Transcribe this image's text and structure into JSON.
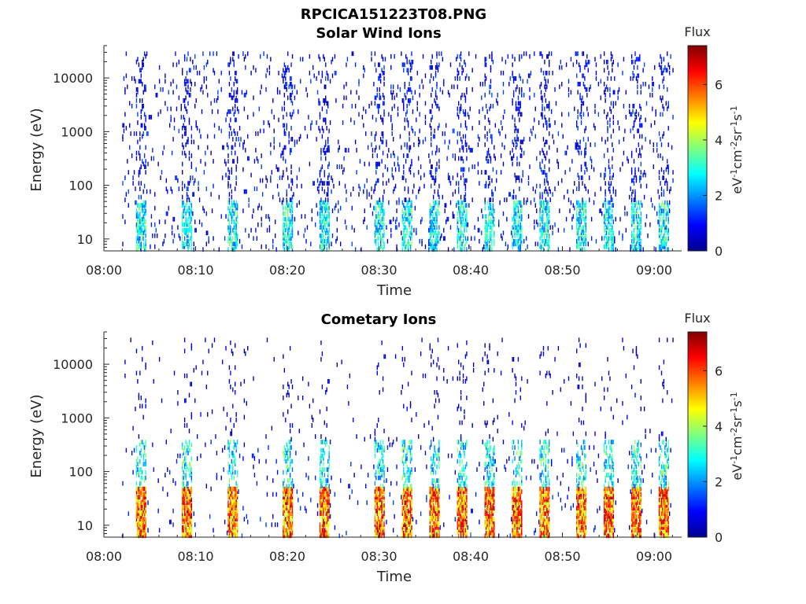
{
  "figure": {
    "title": "RPCICA151223T08.PNG"
  },
  "chart_data": [
    {
      "type": "heatmap",
      "title": "Solar Wind Ions",
      "xlabel": "Time",
      "ylabel": "Energy (eV)",
      "yscale": "log",
      "xlim": [
        "08:00",
        "09:03"
      ],
      "ylim": [
        6,
        40000
      ],
      "xticks": [
        "08:00",
        "08:10",
        "08:20",
        "08:30",
        "08:40",
        "08:50",
        "09:00"
      ],
      "yticks": [
        "10",
        "100",
        "1000",
        "10000"
      ],
      "colorbar": {
        "label": "Flux",
        "unit_label": "eV-1cm-2sr-1s-1",
        "range": [
          0,
          7.4
        ],
        "ticks": [
          "0",
          "2",
          "4",
          "6"
        ],
        "colormap": "jet"
      },
      "data_start": "08:02",
      "data_end": "09:02",
      "activity_bursts": [
        "08:04",
        "08:09",
        "08:14",
        "08:20",
        "08:24",
        "08:30",
        "08:33",
        "08:36",
        "08:39",
        "08:42",
        "08:45",
        "08:48",
        "08:52",
        "08:55",
        "08:58",
        "09:01"
      ],
      "typical_flux": "low (0-2) scattered across 10-30000 eV, moderate (2-4) near 20-40 eV during bursts"
    },
    {
      "type": "heatmap",
      "title": "Cometary Ions",
      "xlabel": "Time",
      "ylabel": "Energy (eV)",
      "yscale": "log",
      "xlim": [
        "08:00",
        "09:03"
      ],
      "ylim": [
        6,
        40000
      ],
      "xticks": [
        "08:00",
        "08:10",
        "08:20",
        "08:30",
        "08:40",
        "08:50",
        "09:00"
      ],
      "yticks": [
        "10",
        "100",
        "1000",
        "10000"
      ],
      "colorbar": {
        "label": "Flux",
        "unit_label": "eV-1cm-2sr-1s-1",
        "range": [
          0,
          7.4
        ],
        "ticks": [
          "0",
          "2",
          "4",
          "6"
        ],
        "colormap": "jet"
      },
      "data_start": "08:02",
      "data_end": "09:02",
      "activity_bursts": [
        "08:04",
        "08:09",
        "08:14",
        "08:20",
        "08:24",
        "08:30",
        "08:33",
        "08:36",
        "08:39",
        "08:42",
        "08:45",
        "08:48",
        "08:52",
        "08:55",
        "08:58",
        "09:01"
      ],
      "typical_flux": "high (5-7) near 15-40 eV during bursts, scattered low flux up to 10000 eV"
    }
  ]
}
